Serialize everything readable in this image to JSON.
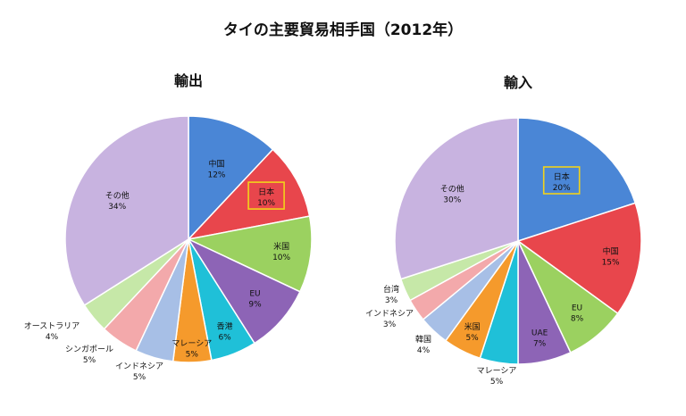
{
  "chart_data": {
    "type": "pie",
    "title": "タイの主要貿易相手国（2012年）",
    "charts": [
      {
        "title": "輸出",
        "slices": [
          {
            "label": "中国",
            "value": 12,
            "pct": "12%",
            "color": "#4a86d6"
          },
          {
            "label": "日本",
            "value": 10,
            "pct": "10%",
            "color": "#e8464c",
            "highlight": true
          },
          {
            "label": "米国",
            "value": 10,
            "pct": "10%",
            "color": "#9bd160"
          },
          {
            "label": "EU",
            "value": 9,
            "pct": "9%",
            "color": "#8d64b6"
          },
          {
            "label": "香港",
            "value": 6,
            "pct": "6%",
            "color": "#1fc0d8"
          },
          {
            "label": "マレーシア",
            "value": 5,
            "pct": "5%",
            "color": "#f59a2c"
          },
          {
            "label": "インドネシア",
            "value": 5,
            "pct": "5%",
            "color": "#a7bfe6"
          },
          {
            "label": "シンガポール",
            "value": 5,
            "pct": "5%",
            "color": "#f3a9ab"
          },
          {
            "label": "オーストラリア",
            "value": 4,
            "pct": "4%",
            "color": "#c6e8a8"
          },
          {
            "label": "その他",
            "value": 34,
            "pct": "34%",
            "color": "#c8b3e0"
          }
        ]
      },
      {
        "title": "輸入",
        "slices": [
          {
            "label": "日本",
            "value": 20,
            "pct": "20%",
            "color": "#4a86d6",
            "highlight": true
          },
          {
            "label": "中国",
            "value": 15,
            "pct": "15%",
            "color": "#e8464c"
          },
          {
            "label": "EU",
            "value": 8,
            "pct": "8%",
            "color": "#9bd160"
          },
          {
            "label": "UAE",
            "value": 7,
            "pct": "7%",
            "color": "#8d64b6"
          },
          {
            "label": "マレーシア",
            "value": 5,
            "pct": "5%",
            "color": "#1fc0d8"
          },
          {
            "label": "米国",
            "value": 5,
            "pct": "5%",
            "color": "#f59a2c"
          },
          {
            "label": "韓国",
            "value": 4,
            "pct": "4%",
            "color": "#a7bfe6"
          },
          {
            "label": "インドネシア",
            "value": 3,
            "pct": "3%",
            "color": "#f3a9ab"
          },
          {
            "label": "台湾",
            "value": 3,
            "pct": "3%",
            "color": "#c6e8a8"
          },
          {
            "label": "その他",
            "value": 30,
            "pct": "30%",
            "color": "#c8b3e0"
          }
        ]
      }
    ]
  }
}
